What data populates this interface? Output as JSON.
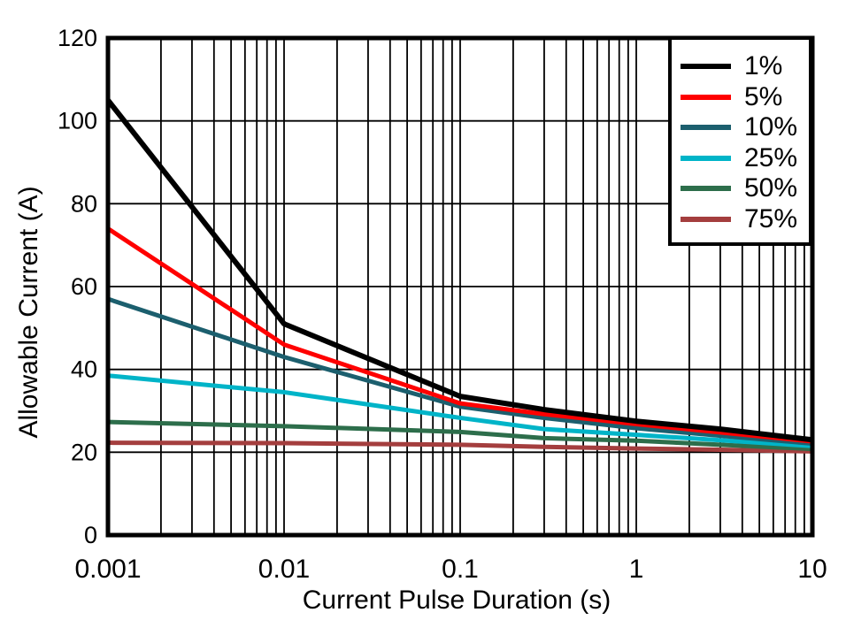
{
  "figure": {
    "background_color": "#FFFFFF",
    "frame_color": "#000000",
    "grid_color": "#000000"
  },
  "chart_data": {
    "type": "line",
    "title": "",
    "xlabel": "Current Pulse Duration (s)",
    "ylabel": "Allowable Current (A)",
    "x_scale": "log",
    "xlim": [
      0.001,
      10
    ],
    "ylim": [
      0,
      120
    ],
    "x_ticks": [
      0.001,
      0.01,
      0.1,
      1,
      10
    ],
    "x_tick_labels": [
      "0.001",
      "0.01",
      "0.1",
      "1",
      "10"
    ],
    "y_ticks": [
      0,
      20,
      40,
      60,
      80,
      100,
      120
    ],
    "grid": {
      "x_minor_log": true,
      "y_major": true
    },
    "legend_position": "top-right",
    "x": [
      0.001,
      0.01,
      0.1,
      0.3,
      1,
      3,
      10
    ],
    "series": [
      {
        "name": "1%",
        "color": "#000000",
        "width": 6,
        "values": [
          105,
          51,
          33.5,
          30.3,
          27.5,
          25.6,
          23.0
        ]
      },
      {
        "name": "5%",
        "color": "#FF0000",
        "width": 5,
        "values": [
          74,
          46,
          31.8,
          29.2,
          26.8,
          24.8,
          22.6
        ]
      },
      {
        "name": "10%",
        "color": "#1C5F6E",
        "width": 5,
        "values": [
          57,
          43,
          31.0,
          28.3,
          25.8,
          24.0,
          22.1
        ]
      },
      {
        "name": "25%",
        "color": "#00B4C8",
        "width": 5,
        "values": [
          38.5,
          34.5,
          28.3,
          25.6,
          24.2,
          22.9,
          21.5
        ]
      },
      {
        "name": "50%",
        "color": "#2D6E4B",
        "width": 5,
        "values": [
          27.3,
          26.3,
          24.9,
          23.4,
          22.8,
          21.8,
          20.8
        ]
      },
      {
        "name": "75%",
        "color": "#A43E3E",
        "width": 5,
        "values": [
          22.3,
          22.2,
          21.8,
          21.3,
          20.9,
          20.6,
          20.2
        ]
      }
    ]
  }
}
